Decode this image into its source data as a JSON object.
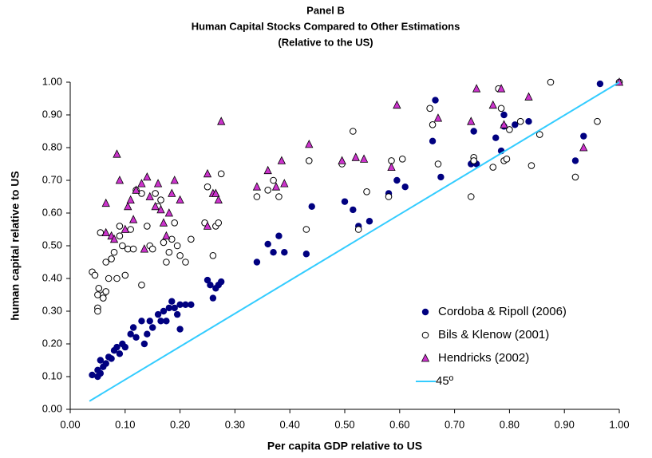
{
  "chart_data": {
    "type": "scatter",
    "title": [
      "Panel B",
      "Human Capital Stocks Compared to Other Estimations",
      "(Relative to the US)"
    ],
    "xlabel": "Per capita GDP relative to US",
    "ylabel": "human capital relative to US",
    "xlim": [
      0,
      1.0
    ],
    "ylim": [
      0,
      1.0
    ],
    "xticks": [
      {
        "value": 0,
        "label": "0.00"
      },
      {
        "value": 0.1,
        "label": "0.10"
      },
      {
        "value": 0.2,
        "label": "0.20"
      },
      {
        "value": 0.3,
        "label": "0.30"
      },
      {
        "value": 0.4,
        "label": "0.40"
      },
      {
        "value": 0.5,
        "label": "0.50"
      },
      {
        "value": 0.6,
        "label": "0.60"
      },
      {
        "value": 0.7,
        "label": "0.70"
      },
      {
        "value": 0.8,
        "label": "0.80"
      },
      {
        "value": 0.9,
        "label": "0.90"
      },
      {
        "value": 1.0,
        "label": "1.00"
      }
    ],
    "yticks": [
      {
        "value": 0,
        "label": "0.00"
      },
      {
        "value": 0.1,
        "label": "0.10"
      },
      {
        "value": 0.2,
        "label": "0.20"
      },
      {
        "value": 0.3,
        "label": "0.30"
      },
      {
        "value": 0.4,
        "label": "0.40"
      },
      {
        "value": 0.5,
        "label": "0.50"
      },
      {
        "value": 0.6,
        "label": "0.60"
      },
      {
        "value": 0.7,
        "label": "0.70"
      },
      {
        "value": 0.8,
        "label": "0.80"
      },
      {
        "value": 0.9,
        "label": "0.90"
      },
      {
        "value": 1.0,
        "label": "1.00"
      }
    ],
    "grid": false,
    "series": [
      {
        "name": "Cordoba & Ripoll (2006)",
        "marker": "filled-circle",
        "color": "#000080",
        "x": [
          0.04,
          0.05,
          0.05,
          0.055,
          0.06,
          0.055,
          0.065,
          0.07,
          0.075,
          0.08,
          0.085,
          0.09,
          0.095,
          0.1,
          0.11,
          0.115,
          0.12,
          0.13,
          0.135,
          0.14,
          0.145,
          0.15,
          0.16,
          0.165,
          0.17,
          0.175,
          0.18,
          0.185,
          0.19,
          0.195,
          0.2,
          0.2,
          0.21,
          0.22,
          0.25,
          0.255,
          0.26,
          0.265,
          0.27,
          0.275,
          0.34,
          0.36,
          0.37,
          0.38,
          0.39,
          0.43,
          0.44,
          0.5,
          0.515,
          0.525,
          0.545,
          0.58,
          0.595,
          0.61,
          0.66,
          0.665,
          0.675,
          0.73,
          0.735,
          0.74,
          0.775,
          0.785,
          0.79,
          0.79,
          0.81,
          0.835,
          0.92,
          0.935,
          0.965,
          1.0
        ],
        "y": [
          0.105,
          0.1,
          0.12,
          0.11,
          0.13,
          0.15,
          0.14,
          0.16,
          0.155,
          0.18,
          0.19,
          0.17,
          0.2,
          0.19,
          0.23,
          0.25,
          0.22,
          0.27,
          0.2,
          0.23,
          0.27,
          0.25,
          0.29,
          0.27,
          0.3,
          0.27,
          0.31,
          0.33,
          0.31,
          0.29,
          0.32,
          0.245,
          0.32,
          0.32,
          0.395,
          0.38,
          0.34,
          0.37,
          0.38,
          0.39,
          0.45,
          0.505,
          0.48,
          0.53,
          0.48,
          0.475,
          0.62,
          0.635,
          0.61,
          0.56,
          0.575,
          0.66,
          0.7,
          0.68,
          0.82,
          0.945,
          0.71,
          0.75,
          0.85,
          0.75,
          0.83,
          0.79,
          0.9,
          0.865,
          0.87,
          0.88,
          0.76,
          0.835,
          0.995,
          1.0
        ]
      },
      {
        "name": "Bils & Klenow (2001)",
        "marker": "open-circle",
        "color": "#000000",
        "x": [
          0.04,
          0.045,
          0.05,
          0.05,
          0.05,
          0.052,
          0.055,
          0.06,
          0.06,
          0.065,
          0.065,
          0.07,
          0.075,
          0.08,
          0.085,
          0.09,
          0.09,
          0.095,
          0.1,
          0.105,
          0.11,
          0.115,
          0.12,
          0.13,
          0.13,
          0.14,
          0.145,
          0.15,
          0.155,
          0.16,
          0.165,
          0.17,
          0.175,
          0.18,
          0.185,
          0.19,
          0.195,
          0.2,
          0.21,
          0.22,
          0.245,
          0.25,
          0.26,
          0.265,
          0.27,
          0.275,
          0.34,
          0.36,
          0.37,
          0.38,
          0.43,
          0.435,
          0.495,
          0.515,
          0.525,
          0.54,
          0.58,
          0.585,
          0.605,
          0.655,
          0.66,
          0.67,
          0.73,
          0.735,
          0.735,
          0.77,
          0.78,
          0.785,
          0.79,
          0.795,
          0.8,
          0.82,
          0.84,
          0.855,
          0.875,
          0.92,
          0.96,
          1.0
        ],
        "y": [
          0.42,
          0.41,
          0.35,
          0.31,
          0.3,
          0.37,
          0.54,
          0.35,
          0.34,
          0.45,
          0.36,
          0.4,
          0.46,
          0.48,
          0.4,
          0.53,
          0.56,
          0.5,
          0.41,
          0.49,
          0.55,
          0.49,
          0.67,
          0.38,
          0.66,
          0.56,
          0.5,
          0.49,
          0.66,
          0.62,
          0.64,
          0.51,
          0.45,
          0.48,
          0.52,
          0.57,
          0.5,
          0.47,
          0.45,
          0.52,
          0.57,
          0.68,
          0.47,
          0.56,
          0.57,
          0.72,
          0.65,
          0.67,
          0.7,
          0.65,
          0.55,
          0.76,
          0.75,
          0.85,
          0.55,
          0.665,
          0.65,
          0.76,
          0.765,
          0.92,
          0.87,
          0.75,
          0.65,
          0.77,
          0.76,
          0.74,
          0.98,
          0.92,
          0.76,
          0.765,
          0.855,
          0.88,
          0.745,
          0.84,
          1.0,
          0.71,
          0.88,
          1.0
        ]
      },
      {
        "name": "Hendricks (2002)",
        "marker": "triangle",
        "color": "#cc33cc",
        "x": [
          0.065,
          0.065,
          0.075,
          0.08,
          0.085,
          0.09,
          0.1,
          0.105,
          0.11,
          0.115,
          0.12,
          0.13,
          0.135,
          0.14,
          0.145,
          0.155,
          0.16,
          0.165,
          0.17,
          0.175,
          0.18,
          0.185,
          0.19,
          0.2,
          0.25,
          0.25,
          0.26,
          0.265,
          0.27,
          0.275,
          0.34,
          0.36,
          0.375,
          0.385,
          0.39,
          0.435,
          0.495,
          0.52,
          0.535,
          0.585,
          0.595,
          0.67,
          0.73,
          0.74,
          0.77,
          0.785,
          0.79,
          0.835,
          0.935,
          1.0
        ],
        "y": [
          0.63,
          0.54,
          0.53,
          0.52,
          0.78,
          0.7,
          0.55,
          0.62,
          0.64,
          0.58,
          0.67,
          0.69,
          0.49,
          0.71,
          0.65,
          0.62,
          0.69,
          0.61,
          0.57,
          0.53,
          0.6,
          0.66,
          0.7,
          0.64,
          0.72,
          0.56,
          0.66,
          0.66,
          0.64,
          0.88,
          0.68,
          0.73,
          0.68,
          0.76,
          0.69,
          0.81,
          0.76,
          0.77,
          0.765,
          0.74,
          0.93,
          0.89,
          0.88,
          0.98,
          0.93,
          0.98,
          0.87,
          0.955,
          0.8,
          1.0
        ]
      },
      {
        "name": "45º",
        "marker": "line",
        "color": "#33ccff",
        "x": [
          0.035,
          1.0
        ],
        "y": [
          0.025,
          1.0
        ]
      }
    ]
  }
}
